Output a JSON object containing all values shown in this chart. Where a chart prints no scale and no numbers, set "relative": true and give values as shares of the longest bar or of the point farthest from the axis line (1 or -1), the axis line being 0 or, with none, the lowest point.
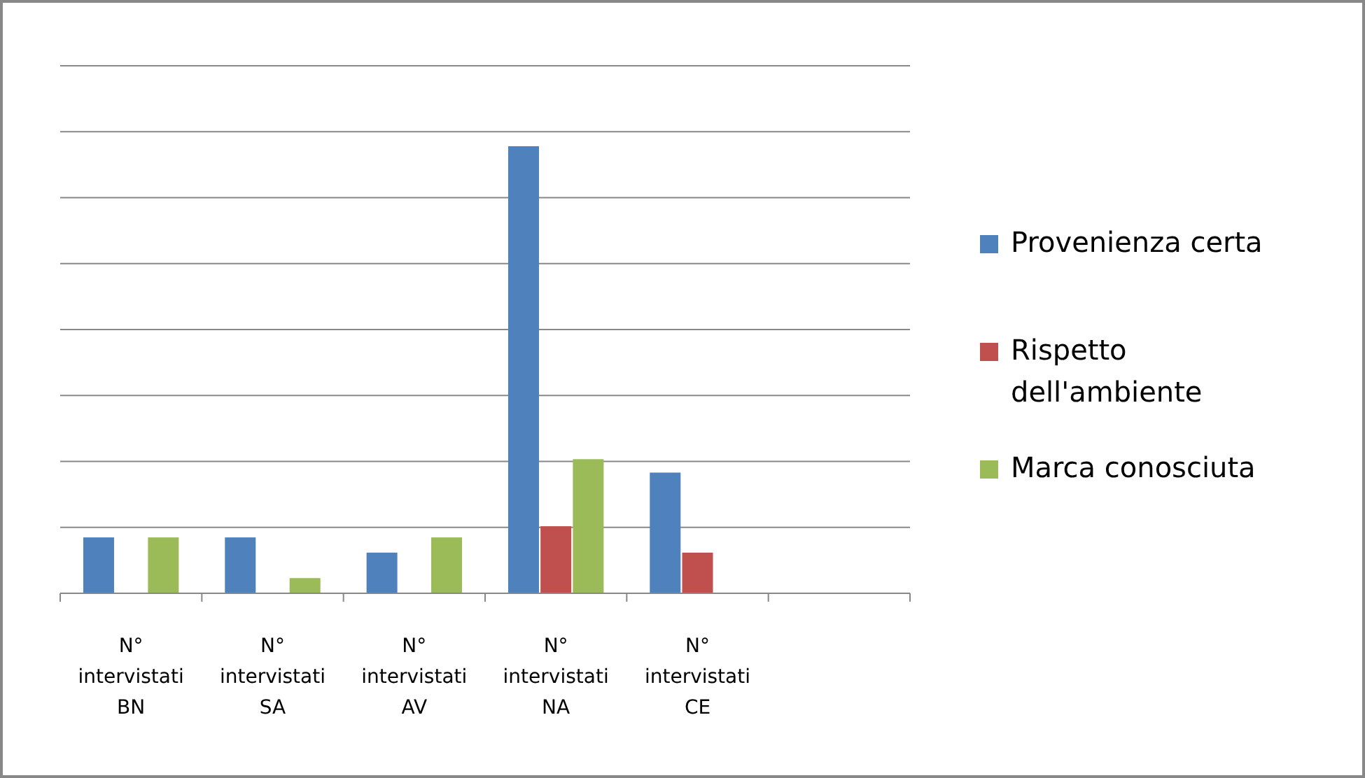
{
  "chart_data": {
    "type": "bar",
    "relative": true,
    "grid": true,
    "legend": "right",
    "categories": [
      "N° intervistati BN",
      "N° intervistati SA",
      "N° intervistati AV",
      "N° intervistati NA",
      "N° intervistati CE",
      null
    ],
    "series": [
      {
        "name": "Provenienza certa",
        "color": "#4f81bd",
        "values": [
          0.125,
          0.125,
          0.091,
          1,
          0.27,
          null
        ]
      },
      {
        "name": "Rispetto dell'ambiente",
        "color": "#c0504d",
        "values": [
          null,
          null,
          null,
          0.15,
          0.091,
          null
        ]
      },
      {
        "name": "Marca conosciuta",
        "color": "#9bbb59",
        "values": [
          0.125,
          0.034,
          0.125,
          0.3,
          null,
          null
        ]
      }
    ]
  }
}
